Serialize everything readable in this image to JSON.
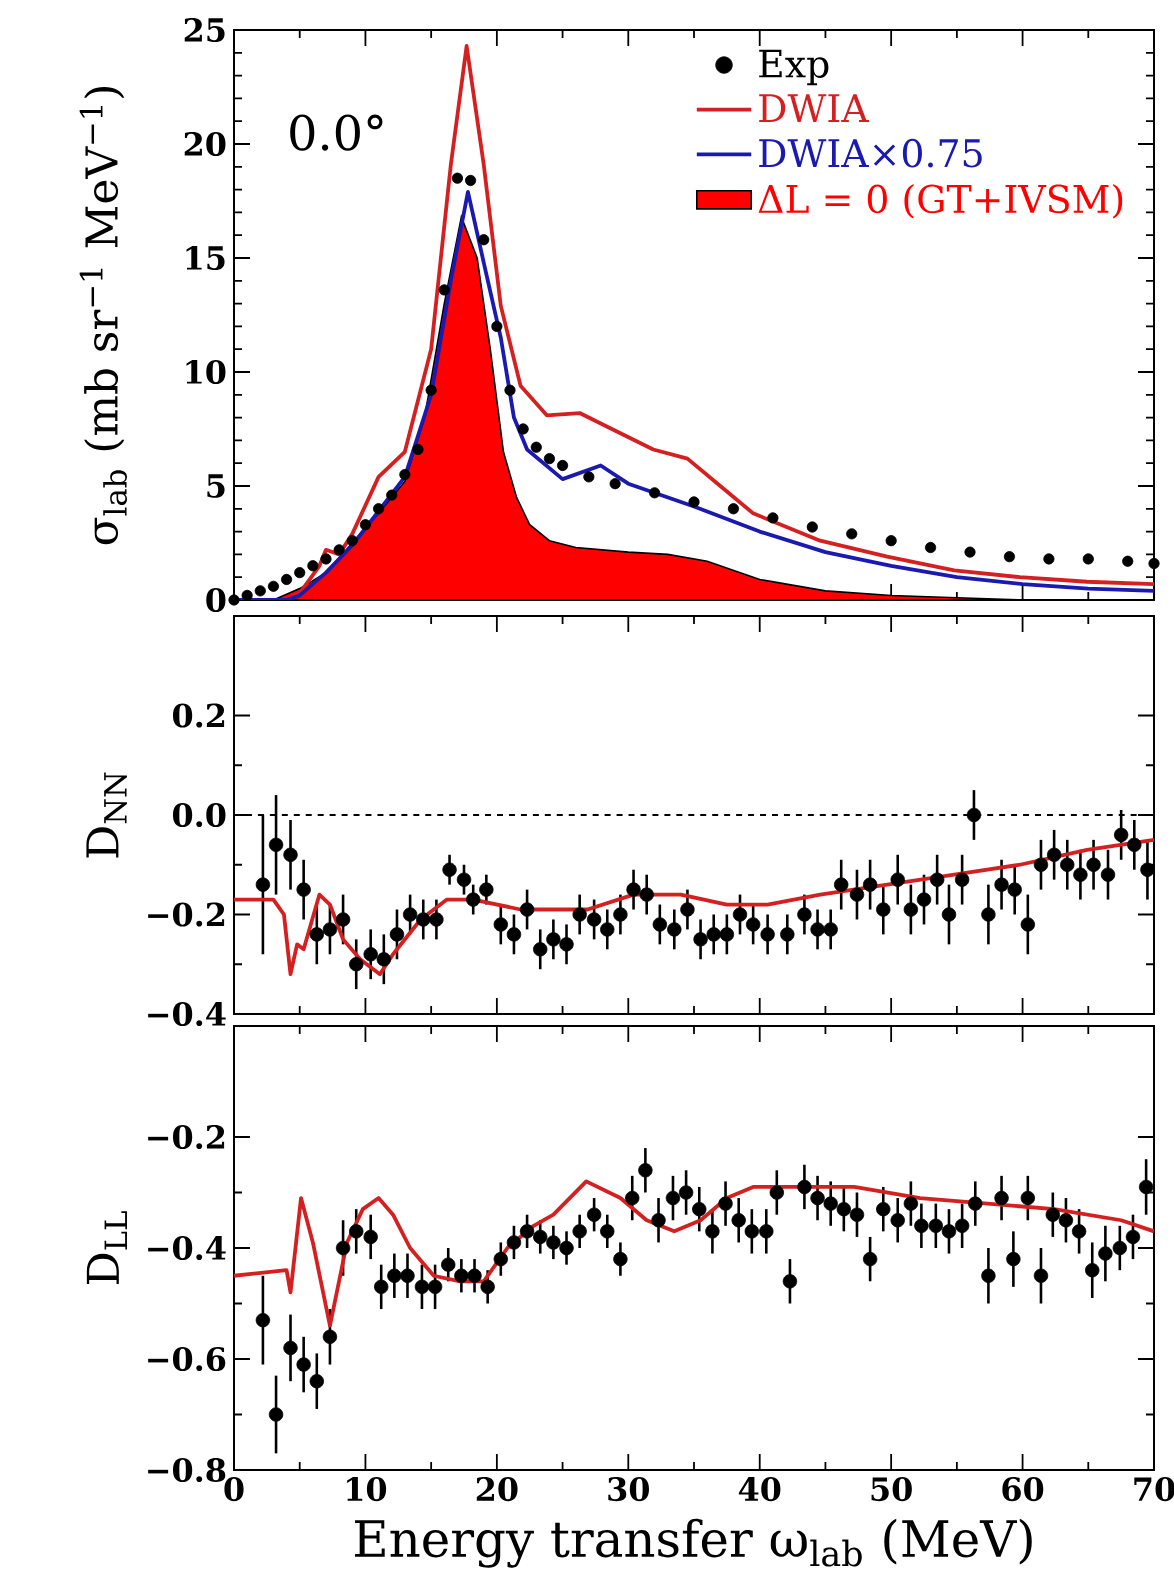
{
  "chart_data": [
    {
      "type": "line",
      "ylabel": "σ$_{lab}$ (mb sr$^{−1}$ MeV$^{−1}$)",
      "xlim": [
        0,
        70
      ],
      "xticks": [
        0,
        10,
        20,
        30,
        40,
        50,
        60,
        70
      ],
      "ylim": [
        0,
        25
      ],
      "yticks": [
        0,
        5,
        10,
        15,
        20,
        25
      ],
      "tick_labels": "y",
      "legend": "top right",
      "annotations": [
        "0.0°"
      ],
      "series": [
        {
          "name": "Exp",
          "type": "scatter",
          "marker": "circle",
          "color": "#000000",
          "x": [
            0,
            1,
            2,
            3,
            4,
            5,
            6,
            7,
            8,
            9,
            10,
            11,
            12,
            13,
            14,
            15,
            16,
            17,
            18,
            19,
            20,
            21,
            22,
            23,
            24,
            25,
            27,
            29,
            32,
            35,
            38,
            41,
            44,
            47,
            50,
            53,
            56,
            59,
            62,
            65,
            68,
            70
          ],
          "values": [
            0,
            0.2,
            0.4,
            0.6,
            0.9,
            1.2,
            1.5,
            1.8,
            2.2,
            2.6,
            3.3,
            4.0,
            4.6,
            5.5,
            6.6,
            9.2,
            13.6,
            18.5,
            18.4,
            15.8,
            12.0,
            9.2,
            7.5,
            6.7,
            6.2,
            5.9,
            5.4,
            5.1,
            4.7,
            4.3,
            4.0,
            3.6,
            3.2,
            2.9,
            2.6,
            2.3,
            2.1,
            1.9,
            1.8,
            1.8,
            1.7,
            1.6
          ]
        },
        {
          "name": "DWIA",
          "type": "line",
          "color": "#d42020",
          "x": [
            0,
            4,
            5,
            6.5,
            7,
            8,
            9,
            11,
            13,
            15,
            16.5,
            17.7,
            19,
            20.3,
            21.8,
            23.8,
            26.3,
            28.4,
            31.9,
            34.5,
            37,
            39.5,
            44.6,
            49.7,
            54.8,
            59.8,
            64.9,
            70
          ],
          "values": [
            0,
            0,
            0.3,
            1.5,
            2.2,
            2.0,
            2.9,
            5.4,
            6.5,
            11.0,
            19.1,
            24.3,
            19.1,
            12.9,
            9.4,
            8.1,
            8.2,
            7.6,
            6.6,
            6.2,
            5.0,
            3.8,
            2.6,
            1.9,
            1.3,
            1.0,
            0.8,
            0.7
          ]
        },
        {
          "name": "DWIA×0.75",
          "type": "line",
          "color": "#1a1ab0",
          "x": [
            0,
            4,
            5,
            7,
            9,
            11,
            13,
            15,
            16.5,
            17.8,
            19,
            20.3,
            21.3,
            22.3,
            25,
            27.9,
            30,
            35,
            40,
            45,
            50,
            55,
            60,
            65,
            70
          ],
          "values": [
            0,
            0,
            0.2,
            1.2,
            2.4,
            3.9,
            5.4,
            9.0,
            14.0,
            17.9,
            14.8,
            11.5,
            8.0,
            6.6,
            5.3,
            5.9,
            5.1,
            4.1,
            3.0,
            2.1,
            1.5,
            1.0,
            0.7,
            0.5,
            0.4
          ]
        },
        {
          "name": "ΔL = 0 (GT+IVSM)",
          "type": "area",
          "color": "#ff0000",
          "x": [
            0,
            3,
            5,
            7,
            9,
            11,
            13,
            14.5,
            16,
            17.3,
            18.5,
            19.5,
            20.5,
            21.5,
            22.5,
            24,
            26,
            30,
            33,
            36,
            40,
            45,
            50,
            55,
            60,
            70
          ],
          "values": [
            0,
            0,
            0.5,
            1.2,
            2.5,
            3.8,
            5.2,
            8.0,
            13.0,
            16.8,
            15.0,
            11.0,
            6.5,
            4.5,
            3.3,
            2.6,
            2.3,
            2.1,
            2.0,
            1.7,
            0.9,
            0.4,
            0.2,
            0.1,
            0,
            0
          ]
        }
      ]
    },
    {
      "type": "line",
      "ylabel": "D$_{NN}$",
      "xlim": [
        0,
        70
      ],
      "xticks": [
        0,
        10,
        20,
        30,
        40,
        50,
        60,
        70
      ],
      "ylim": [
        -0.4,
        0.4
      ],
      "yticks": [
        {
          "value": -0.4,
          "label": "−0.4"
        },
        {
          "value": -0.2,
          "label": "−0.2"
        },
        {
          "value": 0,
          "label": "0.0"
        },
        {
          "value": 0.2,
          "label": "0.2"
        }
      ],
      "tick_labels": "y",
      "ref_lines": [
        {
          "axis": "y",
          "value": 0,
          "line_style": "dashed",
          "color": "#000000"
        }
      ],
      "series": [
        {
          "type": "scatter",
          "marker": "circle",
          "color": "#000000",
          "x": [
            2.2,
            3.2,
            4.3,
            5.3,
            6.3,
            7.3,
            8.3,
            9.3,
            10.4,
            11.4,
            12.4,
            13.4,
            14.4,
            15.4,
            16.4,
            17.5,
            18.2,
            19.2,
            20.3,
            21.3,
            22.3,
            23.3,
            24.3,
            25.3,
            26.3,
            27.4,
            28.4,
            29.4,
            30.4,
            31.4,
            32.4,
            33.5,
            34.5,
            35.5,
            36.5,
            37.5,
            38.5,
            39.5,
            40.6,
            42.1,
            43.4,
            44.4,
            45.4,
            46.2,
            47.4,
            48.4,
            49.4,
            50.5,
            51.5,
            52.5,
            53.5,
            54.4,
            55.4,
            56.3,
            57.4,
            58.4,
            59.4,
            60.4,
            61.4,
            62.4,
            63.4,
            64.4,
            65.4,
            66.5,
            67.5,
            68.5,
            69.5
          ],
          "values": [
            -0.14,
            -0.06,
            -0.08,
            -0.15,
            -0.24,
            -0.23,
            -0.21,
            -0.3,
            -0.28,
            -0.29,
            -0.24,
            -0.2,
            -0.21,
            -0.21,
            -0.11,
            -0.13,
            -0.17,
            -0.15,
            -0.22,
            -0.24,
            -0.19,
            -0.27,
            -0.25,
            -0.26,
            -0.2,
            -0.21,
            -0.23,
            -0.2,
            -0.15,
            -0.16,
            -0.22,
            -0.23,
            -0.19,
            -0.25,
            -0.24,
            -0.24,
            -0.2,
            -0.22,
            -0.24,
            -0.24,
            -0.2,
            -0.23,
            -0.23,
            -0.14,
            -0.16,
            -0.14,
            -0.19,
            -0.13,
            -0.19,
            -0.17,
            -0.13,
            -0.2,
            -0.13,
            0.0,
            -0.2,
            -0.14,
            -0.15,
            -0.22,
            -0.1,
            -0.08,
            -0.1,
            -0.12,
            -0.1,
            -0.12,
            -0.04,
            -0.06,
            -0.11
          ],
          "errors": [
            0.14,
            0.1,
            0.07,
            0.06,
            0.06,
            0.05,
            0.05,
            0.05,
            0.05,
            0.05,
            0.05,
            0.04,
            0.04,
            0.04,
            0.03,
            0.03,
            0.03,
            0.03,
            0.04,
            0.04,
            0.04,
            0.04,
            0.04,
            0.04,
            0.04,
            0.04,
            0.04,
            0.04,
            0.04,
            0.04,
            0.04,
            0.04,
            0.04,
            0.04,
            0.04,
            0.04,
            0.04,
            0.04,
            0.04,
            0.04,
            0.04,
            0.04,
            0.04,
            0.05,
            0.05,
            0.05,
            0.05,
            0.05,
            0.05,
            0.05,
            0.05,
            0.06,
            0.05,
            0.05,
            0.06,
            0.05,
            0.05,
            0.06,
            0.05,
            0.05,
            0.05,
            0.05,
            0.05,
            0.05,
            0.05,
            0.05,
            0.06
          ]
        },
        {
          "type": "line",
          "color": "#d42020",
          "x": [
            0,
            3,
            3.8,
            4.3,
            4.8,
            5.3,
            6.5,
            7.3,
            8.3,
            9.6,
            11.1,
            12.1,
            14.2,
            16.2,
            18.2,
            21.8,
            26.9,
            30.4,
            34,
            37.5,
            40.6,
            44.6,
            49.7,
            54.8,
            59.8,
            64.9,
            70
          ],
          "values": [
            -0.17,
            -0.17,
            -0.2,
            -0.32,
            -0.26,
            -0.27,
            -0.16,
            -0.18,
            -0.25,
            -0.29,
            -0.32,
            -0.28,
            -0.21,
            -0.17,
            -0.17,
            -0.19,
            -0.19,
            -0.16,
            -0.16,
            -0.18,
            -0.18,
            -0.16,
            -0.14,
            -0.12,
            -0.1,
            -0.07,
            -0.05
          ]
        }
      ]
    },
    {
      "type": "line",
      "ylabel": "D$_{LL}$",
      "xlabel": "Energy transfer ω$_{lab}$ (MeV)",
      "xlim": [
        0,
        70
      ],
      "xticks": [
        0,
        10,
        20,
        30,
        40,
        50,
        60,
        70
      ],
      "ylim": [
        -0.8,
        0
      ],
      "yticks": [
        {
          "value": -0.8,
          "label": "−0.8"
        },
        {
          "value": -0.6,
          "label": "−0.6"
        },
        {
          "value": -0.4,
          "label": "−0.4"
        },
        {
          "value": -0.2,
          "label": "−0.2"
        }
      ],
      "series": [
        {
          "type": "scatter",
          "marker": "circle",
          "color": "#000000",
          "x": [
            2.2,
            3.2,
            4.3,
            5.3,
            6.3,
            7.3,
            8.3,
            9.3,
            10.4,
            11.2,
            12.2,
            13.2,
            14.3,
            15.3,
            16.3,
            17.3,
            18.3,
            19.3,
            20.3,
            21.3,
            22.3,
            23.3,
            24.3,
            25.3,
            26.3,
            27.4,
            28.4,
            29.4,
            30.3,
            31.3,
            32.3,
            33.4,
            34.4,
            35.4,
            36.4,
            37.4,
            38.4,
            39.4,
            40.5,
            41.3,
            42.3,
            43.4,
            44.4,
            45.4,
            46.4,
            47.4,
            48.4,
            49.4,
            50.5,
            51.5,
            52.3,
            53.4,
            54.4,
            55.4,
            56.4,
            57.4,
            58.4,
            59.3,
            60.4,
            61.4,
            62.3,
            63.3,
            64.3,
            65.3,
            66.3,
            67.4,
            68.4,
            69.4
          ],
          "values": [
            -0.53,
            -0.7,
            -0.58,
            -0.61,
            -0.64,
            -0.56,
            -0.4,
            -0.37,
            -0.38,
            -0.47,
            -0.45,
            -0.45,
            -0.47,
            -0.47,
            -0.43,
            -0.45,
            -0.45,
            -0.47,
            -0.42,
            -0.39,
            -0.37,
            -0.38,
            -0.39,
            -0.4,
            -0.37,
            -0.34,
            -0.37,
            -0.42,
            -0.31,
            -0.26,
            -0.35,
            -0.31,
            -0.3,
            -0.33,
            -0.37,
            -0.32,
            -0.35,
            -0.37,
            -0.37,
            -0.3,
            -0.46,
            -0.29,
            -0.31,
            -0.32,
            -0.33,
            -0.34,
            -0.42,
            -0.33,
            -0.35,
            -0.32,
            -0.36,
            -0.36,
            -0.37,
            -0.36,
            -0.32,
            -0.45,
            -0.31,
            -0.42,
            -0.31,
            -0.45,
            -0.34,
            -0.35,
            -0.37,
            -0.44,
            -0.41,
            -0.4,
            -0.38,
            -0.29
          ],
          "errors": [
            0.08,
            0.07,
            0.06,
            0.05,
            0.05,
            0.05,
            0.05,
            0.04,
            0.04,
            0.04,
            0.04,
            0.04,
            0.04,
            0.04,
            0.03,
            0.03,
            0.03,
            0.03,
            0.03,
            0.03,
            0.03,
            0.03,
            0.03,
            0.03,
            0.03,
            0.03,
            0.03,
            0.03,
            0.04,
            0.04,
            0.04,
            0.04,
            0.04,
            0.04,
            0.04,
            0.04,
            0.04,
            0.04,
            0.04,
            0.04,
            0.04,
            0.04,
            0.04,
            0.04,
            0.04,
            0.04,
            0.04,
            0.04,
            0.04,
            0.04,
            0.04,
            0.04,
            0.04,
            0.04,
            0.04,
            0.05,
            0.04,
            0.05,
            0.04,
            0.05,
            0.04,
            0.04,
            0.04,
            0.05,
            0.05,
            0.04,
            0.04,
            0.05
          ]
        },
        {
          "type": "line",
          "color": "#d42020",
          "x": [
            0,
            4,
            4.3,
            5.1,
            6,
            7.3,
            8.6,
            9.8,
            11,
            12.1,
            13.4,
            15.2,
            17.2,
            19,
            20.8,
            22.8,
            24.3,
            26.8,
            29.4,
            31.4,
            33.5,
            35.5,
            37.5,
            39.5,
            42.1,
            47.2,
            52.2,
            57.3,
            62.4,
            67.5,
            70
          ],
          "values": [
            -0.45,
            -0.44,
            -0.48,
            -0.31,
            -0.39,
            -0.54,
            -0.39,
            -0.33,
            -0.31,
            -0.34,
            -0.4,
            -0.45,
            -0.46,
            -0.46,
            -0.4,
            -0.36,
            -0.34,
            -0.28,
            -0.31,
            -0.35,
            -0.37,
            -0.35,
            -0.31,
            -0.29,
            -0.29,
            -0.29,
            -0.31,
            -0.32,
            -0.33,
            -0.35,
            -0.37
          ]
        }
      ]
    }
  ]
}
